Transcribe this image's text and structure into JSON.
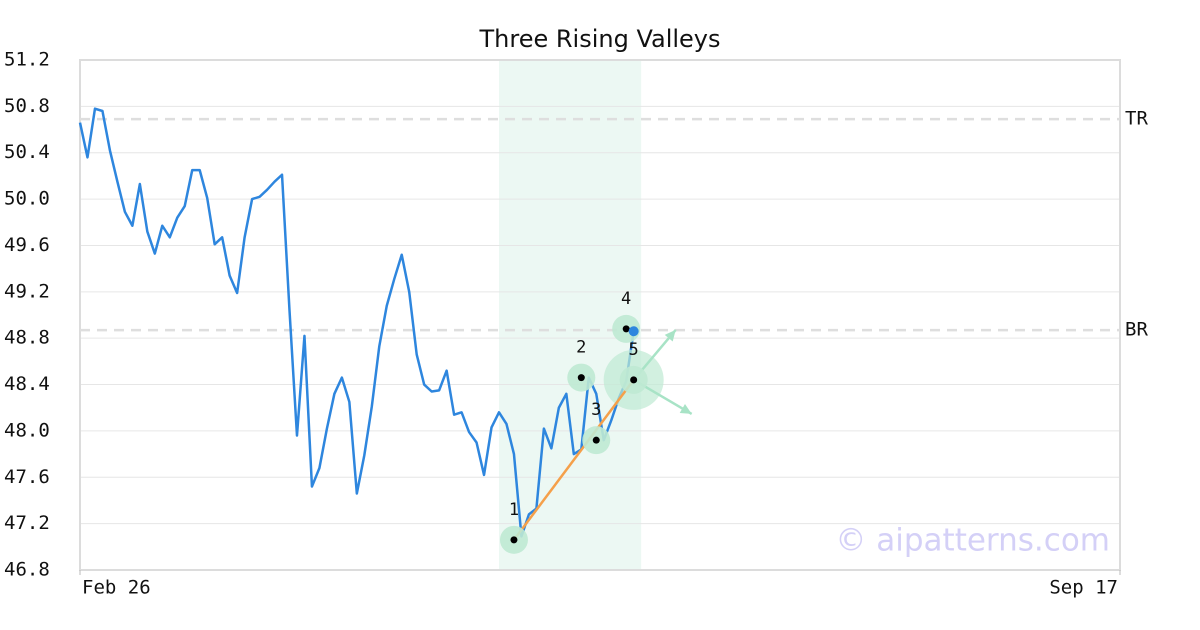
{
  "chart_data": {
    "type": "line",
    "title": "Three Rising Valleys",
    "x": [
      0,
      1,
      2,
      3,
      4,
      5,
      6,
      7,
      8,
      9,
      10,
      11,
      12,
      13,
      14,
      15,
      16,
      17,
      18,
      19,
      20,
      21,
      22,
      23,
      24,
      25,
      26,
      27,
      28,
      29,
      30,
      31,
      32,
      33,
      34,
      35,
      36,
      37,
      38,
      39,
      40,
      41,
      42,
      43,
      44,
      45,
      46,
      47,
      48,
      49,
      50,
      51,
      52,
      53,
      54,
      55,
      56,
      57,
      58,
      59,
      60,
      61,
      62,
      63,
      64,
      65,
      66,
      67,
      68,
      69,
      70,
      71,
      72,
      73,
      74
    ],
    "values": [
      50.66,
      50.36,
      50.78,
      50.76,
      50.42,
      50.15,
      49.89,
      49.77,
      50.13,
      49.72,
      49.53,
      49.77,
      49.67,
      49.84,
      49.94,
      50.25,
      50.25,
      50.01,
      49.61,
      49.67,
      49.34,
      49.19,
      49.67,
      50.0,
      50.02,
      50.08,
      50.15,
      50.21,
      49.04,
      47.96,
      48.82,
      47.52,
      47.68,
      48.02,
      48.32,
      48.46,
      48.25,
      47.46,
      47.79,
      48.21,
      48.73,
      49.08,
      49.31,
      49.52,
      49.2,
      48.66,
      48.4,
      48.34,
      48.35,
      48.52,
      48.14,
      48.16,
      47.99,
      47.9,
      47.62,
      48.03,
      48.16,
      48.06,
      47.8,
      47.09,
      47.28,
      47.33,
      48.02,
      47.85,
      48.2,
      48.32,
      47.8,
      47.84,
      48.46,
      48.32,
      47.92,
      48.09,
      48.28,
      48.43,
      48.86
    ],
    "color": "#2e86de",
    "xlim": [
      0,
      139
    ],
    "xticks": [
      {
        "value": 0,
        "label": "Feb 26"
      },
      {
        "value": 139,
        "label": "Sep 17"
      }
    ],
    "ylim": [
      46.8,
      51.2
    ],
    "yticks": [
      46.8,
      47.2,
      47.6,
      48.0,
      48.4,
      48.8,
      49.2,
      49.6,
      50.0,
      50.4,
      50.8,
      51.2
    ],
    "ytick_labels": [
      "46.8",
      "47.2",
      "47.6",
      "48.0",
      "48.4",
      "48.8",
      "49.2",
      "49.6",
      "50.0",
      "50.4",
      "50.8",
      "51.2"
    ],
    "grid": true,
    "highlight_x": [
      56,
      75
    ],
    "levels": [
      {
        "label": "TR",
        "value": 50.69
      },
      {
        "label": "BR",
        "value": 48.87
      }
    ],
    "pattern_points": [
      {
        "label": "1",
        "x": 58,
        "value": 47.06
      },
      {
        "label": "2",
        "x": 67,
        "value": 48.46
      },
      {
        "label": "3",
        "x": 69,
        "value": 47.92
      },
      {
        "label": "4",
        "x": 73,
        "value": 48.88
      },
      {
        "label": "5",
        "x": 74,
        "value": 48.44
      }
    ],
    "watermark": "© aipatterns.com"
  }
}
